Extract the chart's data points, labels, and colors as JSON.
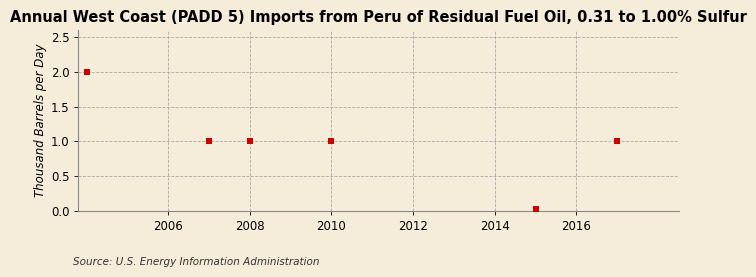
{
  "title": "Annual West Coast (PADD 5) Imports from Peru of Residual Fuel Oil, 0.31 to 1.00% Sulfur",
  "ylabel": "Thousand Barrels per Day",
  "source": "Source: U.S. Energy Information Administration",
  "background_color": "#f5edda",
  "plot_background_color": "#f5edda",
  "data_x": [
    2004,
    2007,
    2008,
    2010,
    2015,
    2017
  ],
  "data_y": [
    2.0,
    1.0,
    1.0,
    1.0,
    0.03,
    1.0
  ],
  "marker_color": "#cc0000",
  "marker_size": 4,
  "xlim": [
    2003.8,
    2018.5
  ],
  "ylim": [
    0.0,
    2.6
  ],
  "yticks": [
    0.0,
    0.5,
    1.0,
    1.5,
    2.0,
    2.5
  ],
  "xticks": [
    2006,
    2008,
    2010,
    2012,
    2014,
    2016
  ],
  "grid_color": "#aaaaaa",
  "grid_style": "--",
  "title_fontsize": 10.5,
  "label_fontsize": 8.5,
  "tick_fontsize": 8.5,
  "source_fontsize": 7.5
}
